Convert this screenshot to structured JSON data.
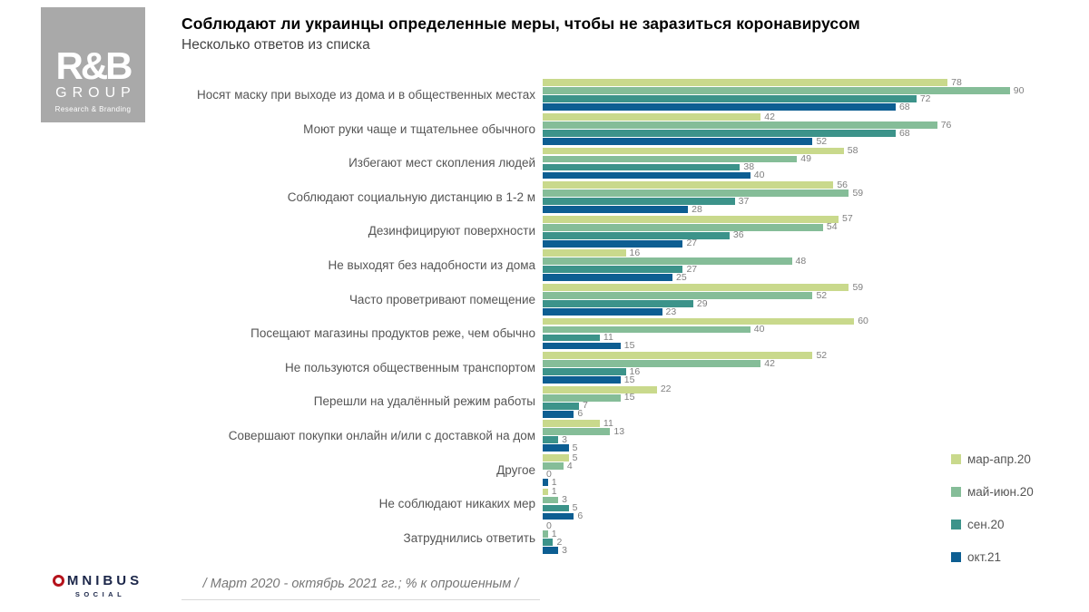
{
  "logo": {
    "line1": "R&B",
    "line2": "GROUP",
    "line3": "Research & Branding"
  },
  "header": {
    "title": "Соблюдают ли украинцы определенные меры, чтобы не заразиться коронавирусом",
    "subtitle": "Несколько ответов из списка"
  },
  "chart_data": {
    "type": "bar",
    "orientation": "horizontal",
    "title": "Соблюдают ли украинцы определенные меры, чтобы не заразиться коронавирусом",
    "subtitle": "Несколько ответов из списка",
    "categories": [
      "Носят маску при выходе из дома и в общественных местах",
      "Моют руки чаще и тщательнее обычного",
      "Избегают мест скопления людей",
      "Соблюдают социальную дистанцию в 1-2 м",
      "Дезинфицируют поверхности",
      "Не выходят без надобности из дома",
      "Часто проветривают помещение",
      "Посещают магазины продуктов реже, чем обычно",
      "Не пользуются общественным транспортом",
      "Перешли на удалённый режим работы",
      "Совершают покупки онлайн и/или с доставкой на дом",
      "Другое",
      "Не соблюдают никаких мер",
      "Затруднились ответить"
    ],
    "series": [
      {
        "name": "мар-апр.20",
        "color": "#c9d98c",
        "values": [
          78,
          42,
          58,
          56,
          57,
          16,
          59,
          60,
          52,
          22,
          11,
          5,
          1,
          0
        ]
      },
      {
        "name": "май-июн.20",
        "color": "#85bd98",
        "values": [
          90,
          76,
          49,
          59,
          54,
          48,
          52,
          40,
          42,
          15,
          13,
          4,
          3,
          1
        ]
      },
      {
        "name": "сен.20",
        "color": "#3c938a",
        "values": [
          72,
          68,
          38,
          37,
          36,
          27,
          29,
          11,
          16,
          7,
          3,
          0,
          5,
          2
        ]
      },
      {
        "name": "окт.21",
        "color": "#0d5e92",
        "values": [
          68,
          52,
          40,
          28,
          27,
          25,
          23,
          15,
          15,
          6,
          5,
          1,
          6,
          3
        ]
      }
    ],
    "xlim": [
      0,
      100
    ],
    "grid": false,
    "value_labels": true,
    "legend_position": "bottom-right"
  },
  "footer": {
    "brand": "OMNIBUS",
    "brand_sub": "SOCIAL",
    "note": "/ Март 2020 - октябрь 2021 гг.; % к опрошенным /"
  }
}
